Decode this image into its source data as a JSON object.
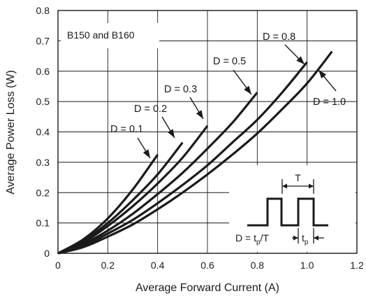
{
  "chart_data": {
    "type": "line",
    "xlabel": "Average Forward Current (A)",
    "ylabel": "Average Power Loss (W)",
    "xlim": [
      0,
      1.2
    ],
    "ylim": [
      0,
      0.8
    ],
    "x_ticks": [
      "0",
      "0.2",
      "0.4",
      "0.6",
      "0.8",
      "1.0",
      "1.2"
    ],
    "y_ticks": [
      "0",
      "0.1",
      "0.2",
      "0.3",
      "0.4",
      "0.5",
      "0.6",
      "0.7",
      "0.8"
    ],
    "grid": true,
    "annotation": "B150 and B160",
    "series": [
      {
        "name": "D = 0.1",
        "x": [
          0,
          0.1,
          0.2,
          0.3,
          0.4
        ],
        "y": [
          0,
          0.045,
          0.115,
          0.21,
          0.325
        ]
      },
      {
        "name": "D = 0.2",
        "x": [
          0,
          0.1,
          0.2,
          0.3,
          0.4,
          0.5
        ],
        "y": [
          0,
          0.04,
          0.1,
          0.175,
          0.26,
          0.365
        ]
      },
      {
        "name": "D = 0.3",
        "x": [
          0,
          0.1,
          0.2,
          0.3,
          0.4,
          0.5,
          0.6
        ],
        "y": [
          0,
          0.035,
          0.09,
          0.155,
          0.23,
          0.315,
          0.42
        ]
      },
      {
        "name": "D = 0.5",
        "x": [
          0,
          0.1,
          0.2,
          0.3,
          0.4,
          0.5,
          0.6,
          0.7,
          0.8
        ],
        "y": [
          0,
          0.03,
          0.075,
          0.13,
          0.195,
          0.265,
          0.345,
          0.43,
          0.53
        ]
      },
      {
        "name": "D = 0.8",
        "x": [
          0,
          0.1,
          0.2,
          0.3,
          0.4,
          0.5,
          0.6,
          0.7,
          0.8,
          0.9,
          1.0
        ],
        "y": [
          0,
          0.025,
          0.065,
          0.11,
          0.165,
          0.225,
          0.29,
          0.365,
          0.44,
          0.53,
          0.63
        ]
      },
      {
        "name": "D = 1.0",
        "x": [
          0,
          0.1,
          0.2,
          0.3,
          0.4,
          0.5,
          0.6,
          0.7,
          0.8,
          0.9,
          1.0,
          1.1
        ],
        "y": [
          0,
          0.02,
          0.055,
          0.095,
          0.145,
          0.2,
          0.26,
          0.325,
          0.395,
          0.475,
          0.56,
          0.665
        ]
      }
    ],
    "waveform": {
      "period_label": "T",
      "formula_prefix": "D = t",
      "formula_sub": "p",
      "formula_suffix": "/T",
      "pulse_label": "t",
      "pulse_sub": "p"
    }
  }
}
